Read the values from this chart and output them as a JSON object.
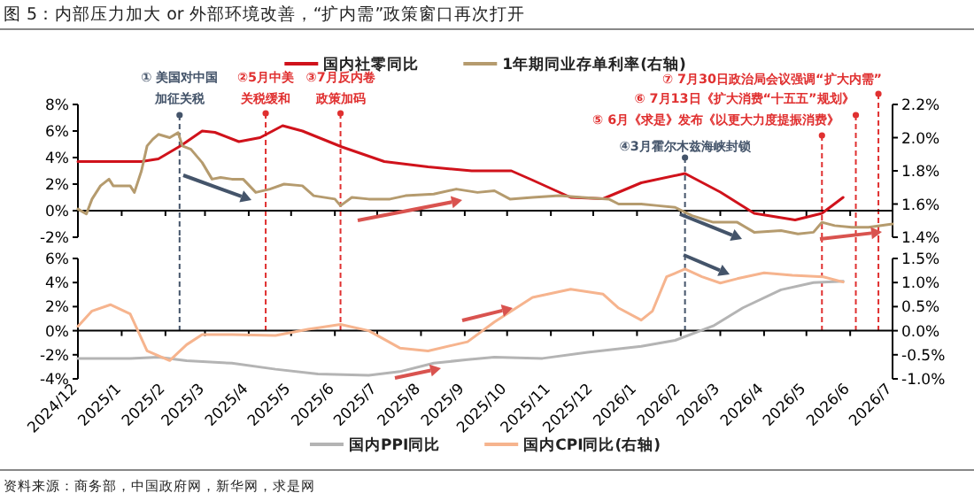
{
  "chart_data": [
    {
      "type": "line",
      "title": "图 5：内部压力加大 or 外部环境改善，“扩内需”政策窗口再次打开",
      "legend": "top",
      "tick_labels": "y",
      "xlim": [
        "2024-12-01",
        "2026-07-01"
      ],
      "xticks": [
        {
          "value": "2024-12",
          "label": null
        },
        {
          "value": "2025-01",
          "label": null
        },
        {
          "value": "2025-02",
          "label": null
        },
        {
          "value": "2025-03",
          "label": null
        },
        {
          "value": "2025-04",
          "label": null
        },
        {
          "value": "2025-05",
          "label": null
        },
        {
          "value": "2025-06",
          "label": null
        },
        {
          "value": "2025-07",
          "label": null
        },
        {
          "value": "2025-08",
          "label": null
        },
        {
          "value": "2025-09",
          "label": null
        },
        {
          "value": "2025-10",
          "label": null
        },
        {
          "value": "2025-11",
          "label": null
        },
        {
          "value": "2025-12",
          "label": null
        },
        {
          "value": "2026-01",
          "label": null
        },
        {
          "value": "2026-02",
          "label": null
        },
        {
          "value": "2026-03",
          "label": null
        },
        {
          "value": "2026-04",
          "label": null
        },
        {
          "value": "2026-05",
          "label": null
        },
        {
          "value": "2026-06",
          "label": null
        },
        {
          "value": "2026-07",
          "label": null
        }
      ],
      "ylim": [
        -2,
        8
      ],
      "yticks": [
        {
          "value": -2,
          "label": "-2%"
        },
        {
          "value": 0,
          "label": "0%"
        },
        {
          "value": 2,
          "label": "2%"
        },
        {
          "value": 4,
          "label": "4%"
        },
        {
          "value": 6,
          "label": "6%"
        },
        {
          "value": 8,
          "label": "8%"
        }
      ],
      "y2lim": [
        1.4,
        2.2
      ],
      "y2ticks": [
        {
          "value": 1.4,
          "label": "1.4%"
        },
        {
          "value": 1.6,
          "label": "1.6%"
        },
        {
          "value": 1.8,
          "label": "1.8%"
        },
        {
          "value": 2.0,
          "label": "2.0%"
        },
        {
          "value": 2.2,
          "label": "2.2%"
        }
      ],
      "ref_lines": [
        {
          "axis": "x",
          "value": "2025-02-11",
          "label": "① 美国对中国加征关税",
          "color": "#44546a",
          "line_style": "dashed"
        },
        {
          "axis": "x",
          "value": "2025-04-13",
          "label": "②5月中美关税缓和",
          "color": "#e03030",
          "line_style": "dashed"
        },
        {
          "axis": "x",
          "value": "2025-06-05",
          "label": "③7月反内卷政策加码",
          "color": "#e03030",
          "line_style": "dashed"
        },
        {
          "axis": "x",
          "value": "2026-02-04",
          "label": "④3月霍尔木兹海峡封锁",
          "color": "#44546a",
          "line_style": "dashed"
        },
        {
          "axis": "x",
          "value": "2026-05-12",
          "label": "⑤ 6月《求是》发布《以更大力度提振消费》",
          "color": "#e03030",
          "line_style": "dashed"
        },
        {
          "axis": "x",
          "value": "2026-06-05",
          "label": "⑥ 7月13日《扩大消费“十五五”规划》",
          "color": "#e03030",
          "line_style": "dashed"
        },
        {
          "axis": "x",
          "value": "2026-06-21",
          "label": "⑦ 7月30日政治局会议强调“扩大内需”",
          "color": "#e03030",
          "line_style": "dashed"
        }
      ],
      "series": [
        {
          "name": "国内社零同比",
          "color": "#d0121b",
          "x": [
            "2024-12-01",
            "2025-01-15",
            "2025-01-27",
            "2025-02-12",
            "2025-02-27",
            "2025-03-08",
            "2025-03-25",
            "2025-04-09",
            "2025-04-25",
            "2025-05-09",
            "2025-06-06",
            "2025-07-06",
            "2025-08-06",
            "2025-09-06",
            "2025-10-04",
            "2025-10-19",
            "2025-11-15",
            "2025-12-08",
            "2026-01-04",
            "2026-02-04",
            "2026-03-01",
            "2026-03-25",
            "2026-04-23",
            "2026-05-12",
            "2026-05-27"
          ],
          "values": [
            3.7,
            3.7,
            3.9,
            4.9,
            6.0,
            5.9,
            5.2,
            5.5,
            6.4,
            6.0,
            4.8,
            3.7,
            3.3,
            3.0,
            3.0,
            2.3,
            1.0,
            0.9,
            2.1,
            2.8,
            1.4,
            -0.2,
            -0.7,
            -0.2,
            1.0
          ]
        },
        {
          "name": "1年期同业存单利率(右轴)",
          "color": "#b59b6e",
          "axis": "y2",
          "x": [
            "2024-12-01",
            "2024-12-07",
            "2024-12-11",
            "2024-12-17",
            "2024-12-23",
            "2024-12-26",
            "2025-01-07",
            "2025-01-10",
            "2025-01-15",
            "2025-01-19",
            "2025-01-23",
            "2025-01-27",
            "2025-02-04",
            "2025-02-10",
            "2025-02-13",
            "2025-02-19",
            "2025-02-27",
            "2025-03-06",
            "2025-03-12",
            "2025-03-20",
            "2025-03-28",
            "2025-04-06",
            "2025-04-16",
            "2025-04-26",
            "2025-05-09",
            "2025-05-17",
            "2025-06-01",
            "2025-06-05",
            "2025-06-13",
            "2025-06-25",
            "2025-07-10",
            "2025-07-21",
            "2025-08-10",
            "2025-08-26",
            "2025-09-10",
            "2025-09-22",
            "2025-10-03",
            "2025-10-19",
            "2025-11-07",
            "2025-11-23",
            "2025-12-12",
            "2025-12-19",
            "2026-01-04",
            "2026-01-16",
            "2026-01-28",
            "2026-02-09",
            "2026-02-24",
            "2026-03-13",
            "2026-03-25",
            "2026-04-13",
            "2026-04-25",
            "2026-05-06",
            "2026-05-12",
            "2026-05-21",
            "2026-06-02",
            "2026-06-14",
            "2026-07-01"
          ],
          "values": [
            1.57,
            1.54,
            1.63,
            1.71,
            1.75,
            1.71,
            1.71,
            1.67,
            1.8,
            1.95,
            1.99,
            2.02,
            2.0,
            2.03,
            1.95,
            1.93,
            1.85,
            1.75,
            1.76,
            1.75,
            1.75,
            1.67,
            1.69,
            1.72,
            1.71,
            1.65,
            1.63,
            1.59,
            1.64,
            1.63,
            1.63,
            1.65,
            1.66,
            1.69,
            1.67,
            1.68,
            1.63,
            1.64,
            1.65,
            1.64,
            1.63,
            1.6,
            1.6,
            1.59,
            1.58,
            1.53,
            1.49,
            1.49,
            1.43,
            1.44,
            1.42,
            1.43,
            1.49,
            1.47,
            1.46,
            1.46,
            1.48
          ]
        }
      ]
    },
    {
      "type": "line",
      "legend": "bottom",
      "xlim": [
        "2024-12-01",
        "2026-07-01"
      ],
      "xticks": [
        {
          "value": "2024-12",
          "label": "2024/12"
        },
        {
          "value": "2025-01",
          "label": "2025/1"
        },
        {
          "value": "2025-02",
          "label": "2025/2"
        },
        {
          "value": "2025-03",
          "label": "2025/3"
        },
        {
          "value": "2025-04",
          "label": "2025/4"
        },
        {
          "value": "2025-05",
          "label": "2025/5"
        },
        {
          "value": "2025-06",
          "label": "2025/6"
        },
        {
          "value": "2025-07",
          "label": "2025/7"
        },
        {
          "value": "2025-08",
          "label": "2025/8"
        },
        {
          "value": "2025-09",
          "label": "2025/9"
        },
        {
          "value": "2025-10",
          "label": "2025/10"
        },
        {
          "value": "2025-11",
          "label": "2025/11"
        },
        {
          "value": "2025-12",
          "label": "2025/12"
        },
        {
          "value": "2026-01",
          "label": "2026/1"
        },
        {
          "value": "2026-02",
          "label": "2026/2"
        },
        {
          "value": "2026-03",
          "label": "2026/3"
        },
        {
          "value": "2026-04",
          "label": "2026/4"
        },
        {
          "value": "2026-05",
          "label": "2026/5"
        },
        {
          "value": "2026-06",
          "label": "2026/6"
        },
        {
          "value": "2026-07",
          "label": "2026/7"
        }
      ],
      "ylim": [
        -4,
        6
      ],
      "yticks": [
        {
          "value": -4,
          "label": "-4%"
        },
        {
          "value": -2,
          "label": "-2%"
        },
        {
          "value": 0,
          "label": "0%"
        },
        {
          "value": 2,
          "label": "2%"
        },
        {
          "value": 4,
          "label": "4%"
        },
        {
          "value": 6,
          "label": "6%"
        }
      ],
      "y2lim": [
        -1.0,
        1.5
      ],
      "y2ticks": [
        {
          "value": -1.0,
          "label": "-1.0%"
        },
        {
          "value": -0.5,
          "label": "-0.5%"
        },
        {
          "value": 0,
          "label": "0.0%"
        },
        {
          "value": 0.5,
          "label": "0.5%"
        },
        {
          "value": 1.0,
          "label": "1.0%"
        },
        {
          "value": 1.5,
          "label": "1.5%"
        }
      ],
      "ref_lines": [
        {
          "axis": "x",
          "value": "2025-02-11",
          "color": "#44546a",
          "line_style": "dashed"
        },
        {
          "axis": "x",
          "value": "2025-04-13",
          "color": "#e03030",
          "line_style": "dashed"
        },
        {
          "axis": "x",
          "value": "2025-06-05",
          "color": "#e03030",
          "line_style": "dashed"
        },
        {
          "axis": "x",
          "value": "2026-02-04",
          "color": "#44546a",
          "line_style": "dashed"
        },
        {
          "axis": "x",
          "value": "2026-05-12",
          "color": "#e03030",
          "line_style": "dashed"
        },
        {
          "axis": "x",
          "value": "2026-06-05",
          "color": "#e03030",
          "line_style": "dashed"
        },
        {
          "axis": "x",
          "value": "2026-06-21",
          "color": "#e03030",
          "line_style": "dashed"
        }
      ],
      "annotations": [
        "资料来源：商务部，中国政府网，新华网，求是网"
      ],
      "series": [
        {
          "name": "国内PPI同比",
          "color": "#b4b4b4",
          "x": [
            "2024-12-01",
            "2025-01-07",
            "2025-01-27",
            "2025-02-16",
            "2025-03-20",
            "2025-04-20",
            "2025-05-20",
            "2025-06-25",
            "2025-07-17",
            "2025-08-10",
            "2025-09-03",
            "2025-09-22",
            "2025-10-26",
            "2025-11-27",
            "2026-01-04",
            "2026-01-28",
            "2026-02-24",
            "2026-03-17",
            "2026-04-13",
            "2026-05-06",
            "2026-05-27"
          ],
          "values": [
            -2.3,
            -2.3,
            -2.2,
            -2.5,
            -2.7,
            -3.2,
            -3.6,
            -3.7,
            -3.4,
            -2.7,
            -2.4,
            -2.2,
            -2.3,
            -1.8,
            -1.3,
            -0.8,
            0.4,
            1.9,
            3.4,
            4.0,
            4.1
          ]
        },
        {
          "name": "国内CPI同比(右轴)",
          "color": "#f6b48e",
          "axis": "y2",
          "x": [
            "2024-12-01",
            "2024-12-11",
            "2024-12-24",
            "2025-01-07",
            "2025-01-19",
            "2025-02-04",
            "2025-02-16",
            "2025-02-27",
            "2025-03-20",
            "2025-04-20",
            "2025-05-13",
            "2025-06-05",
            "2025-06-25",
            "2025-07-17",
            "2025-08-06",
            "2025-09-03",
            "2025-09-22",
            "2025-10-19",
            "2025-11-15",
            "2025-12-08",
            "2025-12-19",
            "2026-01-04",
            "2026-01-12",
            "2026-01-22",
            "2026-02-04",
            "2026-02-16",
            "2026-03-01",
            "2026-03-13",
            "2026-04-01",
            "2026-04-21",
            "2026-05-13",
            "2026-05-27"
          ],
          "values": [
            0.09,
            0.41,
            0.54,
            0.35,
            -0.42,
            -0.62,
            -0.29,
            -0.08,
            -0.08,
            -0.1,
            0.03,
            0.13,
            0.0,
            -0.36,
            -0.42,
            -0.23,
            0.18,
            0.69,
            0.86,
            0.76,
            0.47,
            0.22,
            0.41,
            1.12,
            1.28,
            1.12,
            0.99,
            1.08,
            1.2,
            1.15,
            1.12,
            1.01
          ]
        }
      ]
    }
  ]
}
